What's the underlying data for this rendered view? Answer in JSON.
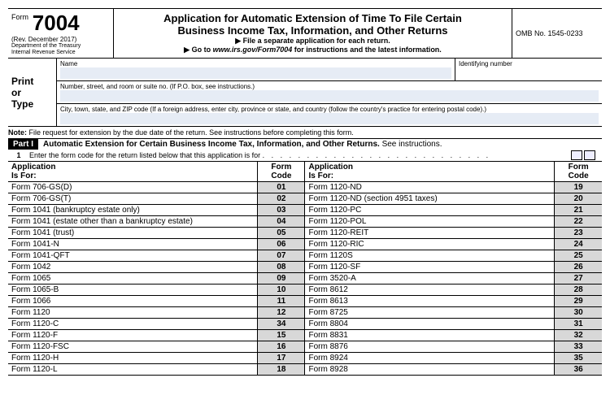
{
  "header": {
    "form_word": "Form",
    "form_number": "7004",
    "revision": "(Rev. December 2017)",
    "dept1": "Department of the Treasury",
    "dept2": "Internal Revenue Service",
    "title_line1": "Application for Automatic Extension of Time To File Certain",
    "title_line2": "Business Income Tax, Information, and Other Returns",
    "sub1": "▶ File a separate application for each return.",
    "sub2_a": "▶ Go to ",
    "sub2_b": "www.irs.gov/Form7004",
    "sub2_c": " for instructions and the latest information.",
    "omb": "OMB No. 1545-0233"
  },
  "addr": {
    "side_label": "Print\nor\nType",
    "name_label": "Name",
    "id_label": "Identifying number",
    "street_label": "Number, street, and room or suite no. (If P.O. box, see instructions.)",
    "city_label": "City, town, state, and ZIP code (If a foreign address, enter city, province or state, and country (follow the country's practice for entering postal code).)"
  },
  "note": {
    "bold": "Note:",
    "text": " File request for extension by the due date of the return. See instructions before completing this form."
  },
  "part1": {
    "label": "Part I",
    "title": "Automatic Extension for Certain Business Income Tax, Information, and Other Returns.",
    "see": " See instructions."
  },
  "line1": {
    "num": "1",
    "text": "Enter the form code for the return listed below that this application is for ",
    "dots": ". . . . . . . . . . . . . . . . . . . . . . . . . ."
  },
  "table": {
    "col_app": "Application\nIs For:",
    "col_code": "Form\nCode",
    "rows": [
      {
        "a": "Form 706-GS(D)",
        "ac": "01",
        "b": "Form 1120-ND",
        "bc": "19"
      },
      {
        "a": "Form 706-GS(T)",
        "ac": "02",
        "b": "Form 1120-ND (section 4951 taxes)",
        "bc": "20"
      },
      {
        "a": "Form 1041 (bankruptcy estate only)",
        "ac": "03",
        "b": "Form 1120-PC",
        "bc": "21"
      },
      {
        "a": "Form 1041 (estate other than a bankruptcy estate)",
        "ac": "04",
        "b": "Form 1120-POL",
        "bc": "22"
      },
      {
        "a": "Form 1041 (trust)",
        "ac": "05",
        "b": "Form 1120-REIT",
        "bc": "23"
      },
      {
        "a": "Form 1041-N",
        "ac": "06",
        "b": "Form 1120-RIC",
        "bc": "24"
      },
      {
        "a": "Form 1041-QFT",
        "ac": "07",
        "b": "Form 1120S",
        "bc": "25"
      },
      {
        "a": "Form 1042",
        "ac": "08",
        "b": "Form 1120-SF",
        "bc": "26"
      },
      {
        "a": "Form 1065",
        "ac": "09",
        "b": "Form 3520-A",
        "bc": "27"
      },
      {
        "a": "Form 1065-B",
        "ac": "10",
        "b": "Form 8612",
        "bc": "28"
      },
      {
        "a": "Form 1066",
        "ac": "11",
        "b": "Form 8613",
        "bc": "29"
      },
      {
        "a": "Form 1120",
        "ac": "12",
        "b": "Form 8725",
        "bc": "30"
      },
      {
        "a": "Form 1120-C",
        "ac": "34",
        "b": "Form 8804",
        "bc": "31"
      },
      {
        "a": "Form 1120-F",
        "ac": "15",
        "b": "Form 8831",
        "bc": "32"
      },
      {
        "a": "Form 1120-FSC",
        "ac": "16",
        "b": "Form 8876",
        "bc": "33"
      },
      {
        "a": "Form 1120-H",
        "ac": "17",
        "b": "Form 8924",
        "bc": "35"
      },
      {
        "a": "Form 1120-L",
        "ac": "18",
        "b": "Form 8928",
        "bc": "36"
      }
    ]
  }
}
